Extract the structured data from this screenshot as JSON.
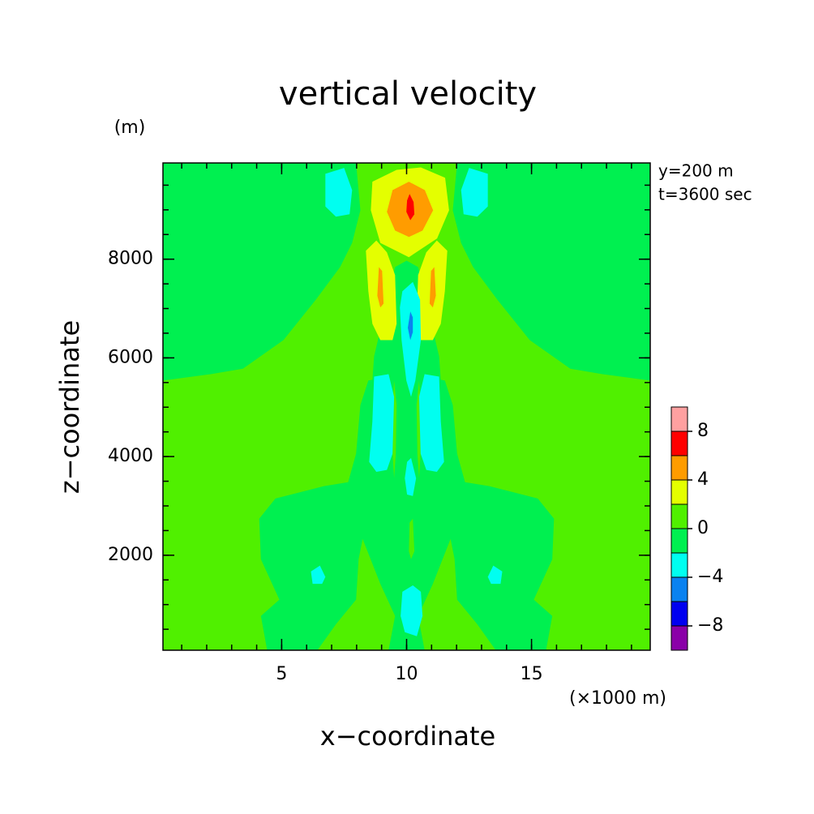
{
  "chart_data": {
    "type": "contour",
    "title": "vertical velocity",
    "ylabel": "z−coordinate",
    "xlabel": "x−coordinate",
    "yunit": "(m)",
    "xunit": "(×1000 m)",
    "annotations": [
      "y=200 m",
      "t=3600 sec"
    ],
    "xlim": [
      0.25,
      19.75
    ],
    "ylim": [
      75,
      9950
    ],
    "xticks": [
      5,
      10,
      15
    ],
    "yticks": [
      2000,
      4000,
      6000,
      8000
    ],
    "xminorticks": [
      1,
      2,
      3,
      4,
      5,
      6,
      7,
      8,
      9,
      10,
      11,
      12,
      13,
      14,
      15,
      16,
      17,
      18,
      19
    ],
    "yminorticks": [
      500,
      1000,
      1500,
      2000,
      2500,
      3000,
      3500,
      4000,
      4500,
      5000,
      5500,
      6000,
      6500,
      7000,
      7500,
      8000,
      8500,
      9000,
      9500
    ],
    "levels": [
      -10,
      -8,
      -6,
      -4,
      -2,
      0,
      2,
      4,
      6,
      8,
      10
    ],
    "colors": [
      "#8a00a8",
      "#0000f0",
      "#0a82f0",
      "#00fff0",
      "#00f050",
      "#50f000",
      "#e4ff00",
      "#ff9c00",
      "#ff0000",
      "#ffa0a0"
    ],
    "colorbar_ticks": [
      {
        "value": -8,
        "label": "−8"
      },
      {
        "value": -4,
        "label": "−4"
      },
      0,
      4,
      8
    ],
    "regions": [
      {
        "value": 0,
        "points": [
          [
            0.25,
            75
          ],
          [
            19.75,
            75
          ],
          [
            19.75,
            9950
          ],
          [
            0.25,
            9950
          ]
        ]
      },
      {
        "value": -2,
        "points": [
          [
            0.25,
            9950
          ],
          [
            7.98,
            9950
          ],
          [
            8.15,
            8990
          ],
          [
            7.82,
            8330
          ],
          [
            7.34,
            7840
          ],
          [
            6.37,
            7180
          ],
          [
            5.07,
            6360
          ],
          [
            3.45,
            5780
          ],
          [
            2.16,
            5670
          ],
          [
            0.25,
            5540
          ]
        ]
      },
      {
        "value": -2,
        "points": [
          [
            19.75,
            9950
          ],
          [
            12.02,
            9950
          ],
          [
            11.85,
            8990
          ],
          [
            12.18,
            8330
          ],
          [
            12.66,
            7840
          ],
          [
            13.63,
            7180
          ],
          [
            14.93,
            6360
          ],
          [
            16.55,
            5780
          ],
          [
            17.84,
            5670
          ],
          [
            19.75,
            5540
          ]
        ]
      },
      {
        "value": -2,
        "points": [
          [
            8.7,
            6030
          ],
          [
            9.54,
            7840
          ],
          [
            10.0,
            7970
          ],
          [
            10.46,
            7840
          ],
          [
            11.3,
            6030
          ],
          [
            11.37,
            5540
          ],
          [
            8.63,
            5540
          ]
        ]
      },
      {
        "value": -2,
        "points": [
          [
            4.42,
            75
          ],
          [
            4.17,
            770
          ],
          [
            4.91,
            1100
          ],
          [
            4.17,
            1920
          ],
          [
            4.1,
            2740
          ],
          [
            4.75,
            3150
          ],
          [
            6.69,
            3400
          ],
          [
            7.66,
            3480
          ],
          [
            7.98,
            4060
          ],
          [
            8.15,
            5040
          ],
          [
            8.47,
            5540
          ],
          [
            10.0,
            5700
          ],
          [
            11.53,
            5540
          ],
          [
            11.85,
            5040
          ],
          [
            12.02,
            4060
          ],
          [
            12.34,
            3480
          ],
          [
            13.31,
            3400
          ],
          [
            15.25,
            3150
          ],
          [
            15.9,
            2740
          ],
          [
            15.83,
            1920
          ],
          [
            15.09,
            1100
          ],
          [
            15.83,
            770
          ],
          [
            15.58,
            75
          ]
        ]
      },
      {
        "value": 0,
        "points": [
          [
            6.43,
            75
          ],
          [
            7.17,
            600
          ],
          [
            7.98,
            1100
          ],
          [
            8.08,
            1920
          ],
          [
            8.24,
            2330
          ],
          [
            8.95,
            1420
          ],
          [
            9.54,
            770
          ],
          [
            9.28,
            75
          ]
        ]
      },
      {
        "value": 0,
        "points": [
          [
            13.57,
            75
          ],
          [
            12.83,
            600
          ],
          [
            12.02,
            1100
          ],
          [
            11.92,
            1920
          ],
          [
            11.76,
            2330
          ],
          [
            11.05,
            1420
          ],
          [
            10.46,
            770
          ],
          [
            10.72,
            75
          ]
        ]
      },
      {
        "value": 0,
        "points": [
          [
            10.12,
            2660
          ],
          [
            10.25,
            2740
          ],
          [
            10.31,
            2080
          ],
          [
            10.18,
            1920
          ],
          [
            10.09,
            2080
          ]
        ]
      },
      {
        "value": 0,
        "points": [
          [
            9.5,
            5540
          ],
          [
            9.6,
            5040
          ],
          [
            9.57,
            4060
          ],
          [
            9.5,
            3560
          ],
          [
            9.44,
            4060
          ],
          [
            9.44,
            5040
          ]
        ]
      },
      {
        "value": 0,
        "points": [
          [
            10.5,
            5540
          ],
          [
            10.4,
            5040
          ],
          [
            10.43,
            4060
          ],
          [
            10.5,
            3560
          ],
          [
            10.56,
            4060
          ],
          [
            10.56,
            5040
          ]
        ]
      },
      {
        "value": 2,
        "points": [
          [
            8.63,
            9570
          ],
          [
            9.6,
            9810
          ],
          [
            10.57,
            9860
          ],
          [
            11.54,
            9650
          ],
          [
            11.7,
            8990
          ],
          [
            11.22,
            8420
          ],
          [
            10.09,
            8040
          ],
          [
            8.95,
            8330
          ],
          [
            8.57,
            8990
          ]
        ]
      },
      {
        "value": 2,
        "points": [
          [
            8.37,
            8170
          ],
          [
            8.79,
            8380
          ],
          [
            9.21,
            8140
          ],
          [
            9.54,
            7680
          ],
          [
            9.6,
            6690
          ],
          [
            9.44,
            6360
          ],
          [
            8.95,
            6360
          ],
          [
            8.63,
            6690
          ],
          [
            8.47,
            7350
          ]
        ]
      },
      {
        "value": 2,
        "points": [
          [
            11.63,
            8170
          ],
          [
            11.21,
            8380
          ],
          [
            10.79,
            8140
          ],
          [
            10.46,
            7680
          ],
          [
            10.4,
            6690
          ],
          [
            10.56,
            6360
          ],
          [
            11.05,
            6360
          ],
          [
            11.37,
            6690
          ],
          [
            11.53,
            7350
          ]
        ]
      },
      {
        "value": 4,
        "points": [
          [
            9.44,
            9400
          ],
          [
            10.09,
            9570
          ],
          [
            10.73,
            9400
          ],
          [
            11.06,
            8990
          ],
          [
            10.64,
            8580
          ],
          [
            10.09,
            8450
          ],
          [
            9.54,
            8580
          ],
          [
            9.21,
            8960
          ]
        ]
      },
      {
        "value": 4,
        "points": [
          [
            8.89,
            7840
          ],
          [
            9.02,
            7760
          ],
          [
            9.08,
            7100
          ],
          [
            8.95,
            7020
          ],
          [
            8.83,
            7260
          ]
        ]
      },
      {
        "value": 4,
        "points": [
          [
            11.11,
            7840
          ],
          [
            10.98,
            7760
          ],
          [
            10.92,
            7100
          ],
          [
            11.05,
            7020
          ],
          [
            11.17,
            7260
          ]
        ]
      },
      {
        "value": 6,
        "points": [
          [
            10.12,
            9320
          ],
          [
            10.28,
            9160
          ],
          [
            10.31,
            8910
          ],
          [
            10.15,
            8790
          ],
          [
            9.99,
            8960
          ],
          [
            10.02,
            9190
          ]
        ]
      },
      {
        "value": -4,
        "points": [
          [
            6.75,
            9730
          ],
          [
            7.5,
            9850
          ],
          [
            7.82,
            9400
          ],
          [
            7.72,
            8910
          ],
          [
            7.17,
            8860
          ],
          [
            6.75,
            9070
          ]
        ]
      },
      {
        "value": -4,
        "points": [
          [
            13.25,
            9730
          ],
          [
            12.5,
            9850
          ],
          [
            12.18,
            9400
          ],
          [
            12.28,
            8910
          ],
          [
            12.83,
            8860
          ],
          [
            13.25,
            9070
          ]
        ]
      },
      {
        "value": -4,
        "points": [
          [
            6.17,
            1670
          ],
          [
            6.53,
            1790
          ],
          [
            6.75,
            1560
          ],
          [
            6.62,
            1420
          ],
          [
            6.24,
            1420
          ]
        ]
      },
      {
        "value": -4,
        "points": [
          [
            13.83,
            1670
          ],
          [
            13.47,
            1790
          ],
          [
            13.25,
            1560
          ],
          [
            13.38,
            1420
          ],
          [
            13.76,
            1420
          ]
        ]
      },
      {
        "value": -4,
        "points": [
          [
            8.7,
            5620
          ],
          [
            9.28,
            5670
          ],
          [
            9.5,
            5210
          ],
          [
            9.44,
            4060
          ],
          [
            9.21,
            3730
          ],
          [
            8.79,
            3690
          ],
          [
            8.5,
            3890
          ],
          [
            8.63,
            4710
          ]
        ]
      },
      {
        "value": -4,
        "points": [
          [
            11.3,
            5620
          ],
          [
            10.72,
            5670
          ],
          [
            10.5,
            5210
          ],
          [
            10.56,
            4060
          ],
          [
            10.79,
            3730
          ],
          [
            11.21,
            3690
          ],
          [
            11.5,
            3890
          ],
          [
            11.37,
            4710
          ]
        ]
      },
      {
        "value": -4,
        "points": [
          [
            9.83,
            7350
          ],
          [
            10.25,
            7540
          ],
          [
            10.54,
            7180
          ],
          [
            10.57,
            6360
          ],
          [
            10.35,
            5540
          ],
          [
            10.18,
            5210
          ],
          [
            9.99,
            5540
          ],
          [
            9.8,
            6360
          ],
          [
            9.73,
            7020
          ]
        ]
      },
      {
        "value": -4,
        "points": [
          [
            10.02,
            3890
          ],
          [
            10.18,
            3970
          ],
          [
            10.38,
            3560
          ],
          [
            10.25,
            3200
          ],
          [
            10.02,
            3230
          ],
          [
            9.93,
            3560
          ]
        ]
      },
      {
        "value": -4,
        "points": [
          [
            9.83,
            1260
          ],
          [
            10.25,
            1390
          ],
          [
            10.57,
            1260
          ],
          [
            10.64,
            770
          ],
          [
            10.41,
            360
          ],
          [
            9.93,
            440
          ],
          [
            9.76,
            770
          ]
        ]
      },
      {
        "value": -6,
        "points": [
          [
            10.15,
            6940
          ],
          [
            10.25,
            6820
          ],
          [
            10.25,
            6520
          ],
          [
            10.15,
            6360
          ],
          [
            10.05,
            6610
          ]
        ]
      }
    ]
  }
}
